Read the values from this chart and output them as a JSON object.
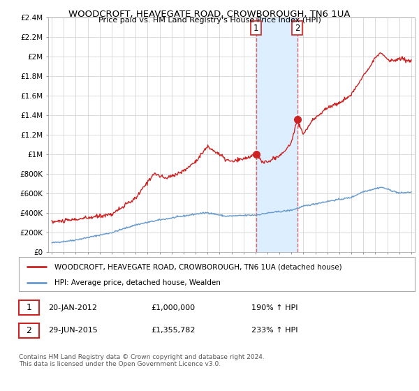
{
  "title": "WOODCROFT, HEAVEGATE ROAD, CROWBOROUGH, TN6 1UA",
  "subtitle": "Price paid vs. HM Land Registry's House Price Index (HPI)",
  "ylim": [
    0,
    2400000
  ],
  "yticks": [
    0,
    200000,
    400000,
    600000,
    800000,
    1000000,
    1200000,
    1400000,
    1600000,
    1800000,
    2000000,
    2200000,
    2400000
  ],
  "ytick_labels": [
    "£0",
    "£200K",
    "£400K",
    "£600K",
    "£800K",
    "£1M",
    "£1.2M",
    "£1.4M",
    "£1.6M",
    "£1.8M",
    "£2M",
    "£2.2M",
    "£2.4M"
  ],
  "red_line_color": "#cc2222",
  "blue_line_color": "#6699cc",
  "vline_color": "#dd6666",
  "shade_color": "#ddeeff",
  "annotation1": {
    "label": "1",
    "date_x": 2012.05,
    "price": 1000000
  },
  "annotation2": {
    "label": "2",
    "date_x": 2015.49,
    "price": 1355782
  },
  "legend_red": "WOODCROFT, HEAVEGATE ROAD, CROWBOROUGH, TN6 1UA (detached house)",
  "legend_blue": "HPI: Average price, detached house, Wealden",
  "table_row1": [
    "1",
    "20-JAN-2012",
    "£1,000,000",
    "190% ↑ HPI"
  ],
  "table_row2": [
    "2",
    "29-JUN-2015",
    "£1,355,782",
    "233% ↑ HPI"
  ],
  "footnote": "Contains HM Land Registry data © Crown copyright and database right 2024.\nThis data is licensed under the Open Government Licence v3.0.",
  "background_color": "#ffffff",
  "grid_color": "#cccccc",
  "xlim_left": 1994.7,
  "xlim_right": 2025.3
}
